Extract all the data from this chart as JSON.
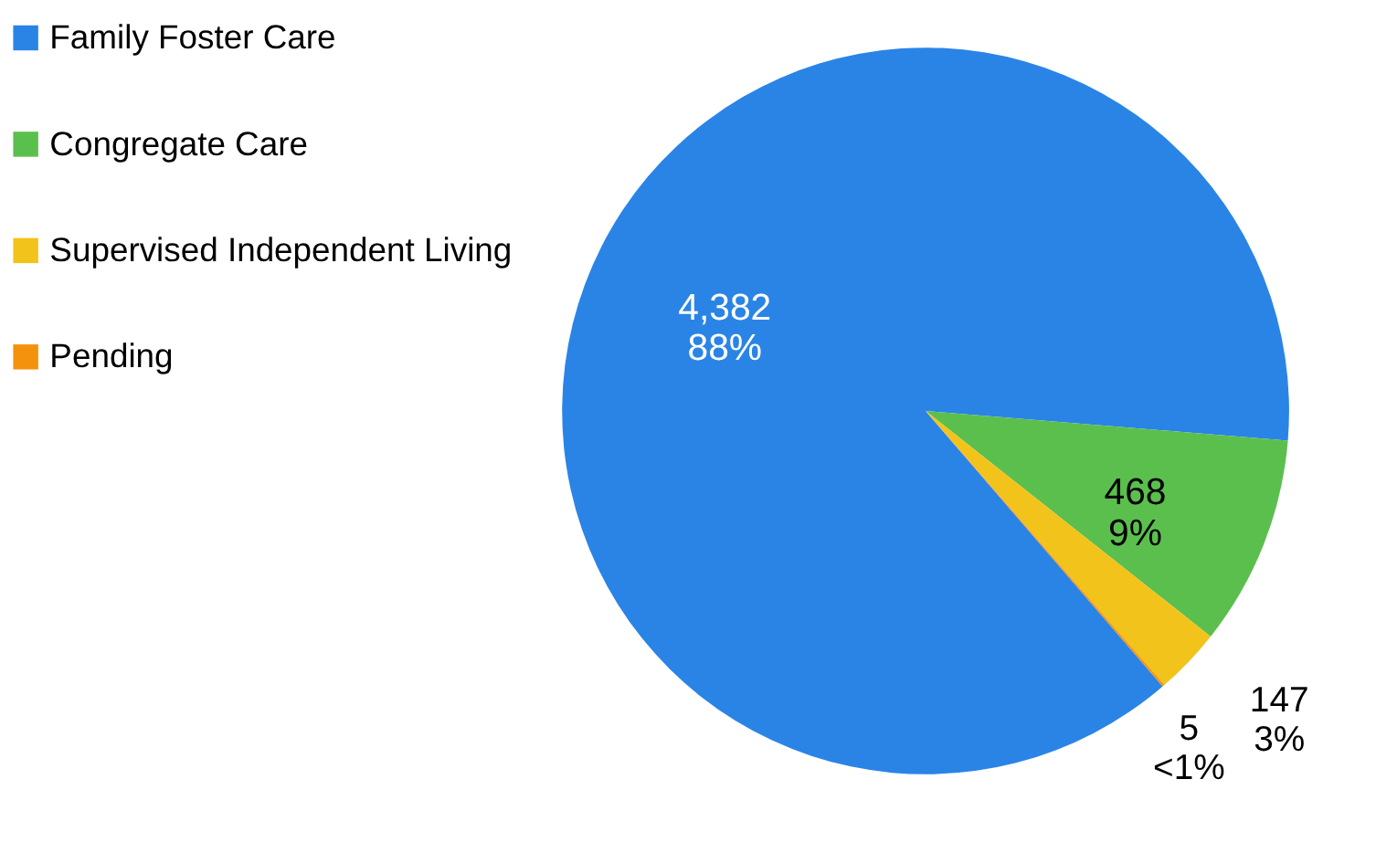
{
  "chart_data": {
    "type": "pie",
    "categories": [
      "Family Foster Care",
      "Congregate Care",
      "Supervised Independent Living",
      "Pending"
    ],
    "values": [
      4382,
      468,
      147,
      5
    ],
    "colors": [
      "#2a84e6",
      "#5bbf4e",
      "#f2c31b",
      "#f5920d"
    ],
    "value_labels": [
      "4,382\n88%",
      "468\n9%",
      "147\n3%",
      "5\n<1%"
    ],
    "legend": "left"
  }
}
